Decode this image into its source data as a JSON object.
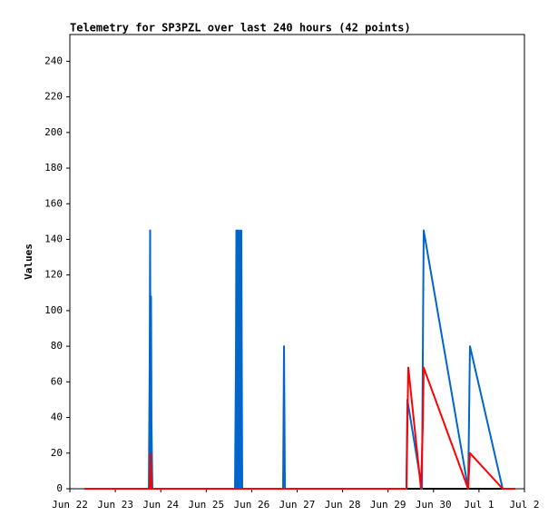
{
  "chart_data": {
    "type": "line",
    "title": "Telemetry for SP3PZL over last 240 hours (42 points)",
    "y_label": "Values",
    "xlim": [
      22,
      32
    ],
    "xticks": [
      {
        "value": 22,
        "label": "Jun 22"
      },
      {
        "value": 23,
        "label": "Jun 23"
      },
      {
        "value": 24,
        "label": "Jun 24"
      },
      {
        "value": 25,
        "label": "Jun 25"
      },
      {
        "value": 26,
        "label": "Jun 26"
      },
      {
        "value": 27,
        "label": "Jun 27"
      },
      {
        "value": 28,
        "label": "Jun 28"
      },
      {
        "value": 29,
        "label": "Jun 29"
      },
      {
        "value": 30,
        "label": "Jun 30"
      },
      {
        "value": 31,
        "label": "Jul 1"
      },
      {
        "value": 32,
        "label": "Jul 2"
      }
    ],
    "ylim": [
      0,
      255
    ],
    "yticks": [
      0,
      20,
      40,
      60,
      80,
      100,
      120,
      140,
      160,
      180,
      200,
      220,
      240
    ],
    "series": [
      {
        "color": "#000000",
        "x": [
          22.319,
          31.8
        ],
        "values": [
          0,
          0
        ]
      },
      {
        "color": "#0066cc",
        "x": [
          22.319,
          23.737,
          23.756,
          23.766,
          23.776,
          23.786,
          23.796,
          23.816,
          25.633,
          25.653,
          25.663,
          25.673,
          25.693,
          25.713,
          25.733,
          25.752,
          25.772,
          25.792,
          26.691,
          26.711,
          26.721,
          26.731,
          29.405,
          29.425,
          29.745,
          29.764,
          29.784,
          30.762,
          30.802,
          31.521,
          31.8
        ],
        "values": [
          0,
          0,
          72,
          145,
          0,
          108,
          36,
          0,
          0,
          72,
          145,
          0,
          145,
          0,
          145,
          0,
          145,
          0,
          0,
          80,
          40,
          0,
          0,
          50,
          0,
          72,
          145,
          0,
          80,
          0,
          0
        ]
      },
      {
        "color": "#ff0000",
        "x": [
          22.319,
          23.756,
          23.776,
          23.796,
          29.405,
          29.445,
          29.725,
          29.764,
          29.784,
          30.762,
          30.802,
          31.521,
          31.8
        ],
        "values": [
          0,
          0,
          20,
          0,
          0,
          68,
          0,
          35,
          68,
          0,
          20,
          0,
          0
        ]
      }
    ]
  }
}
